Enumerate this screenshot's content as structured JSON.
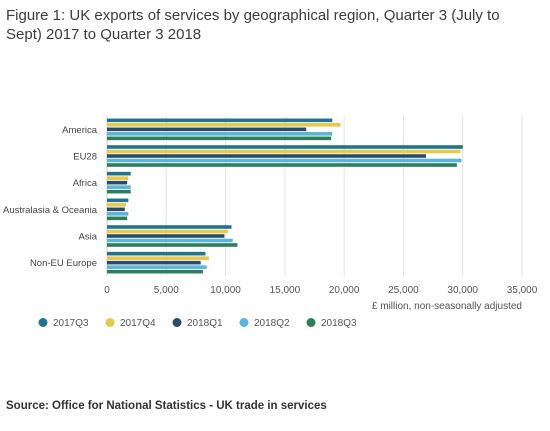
{
  "title": "Figure 1: UK exports of services by geographical region, Quarter 3 (July to Sept) 2017 to Quarter 3 2018",
  "source": "Source: Office for National Statistics - UK trade in services",
  "chart_data": {
    "type": "bar",
    "orientation": "horizontal",
    "categories": [
      "America",
      "EU28",
      "Africa",
      "Australasia & Oceania",
      "Asia",
      "Non-EU Europe"
    ],
    "series": [
      {
        "name": "2017Q3",
        "color": "#20748f",
        "values": [
          19000,
          30000,
          2000,
          1800,
          10500,
          8300
        ]
      },
      {
        "name": "2017Q4",
        "color": "#e8c84a",
        "values": [
          19700,
          29800,
          1800,
          1600,
          10200,
          8600
        ]
      },
      {
        "name": "2018Q1",
        "color": "#2c4a6b",
        "values": [
          16800,
          26900,
          1700,
          1500,
          9900,
          7900
        ]
      },
      {
        "name": "2018Q2",
        "color": "#5ab5d9",
        "values": [
          19000,
          29900,
          2000,
          1800,
          10600,
          8400
        ]
      },
      {
        "name": "2018Q3",
        "color": "#2e7d5b",
        "values": [
          18900,
          29500,
          2000,
          1700,
          11000,
          8100
        ]
      }
    ],
    "x_ticks": [
      "0",
      "5,000",
      "10,000",
      "15,000",
      "20,000",
      "25,000",
      "30,000",
      "35,000"
    ],
    "xlim": [
      0,
      35000
    ],
    "xlabel": "£ million, non-seasonally adjusted",
    "ylabel": "",
    "grid": true,
    "legend_position": "bottom"
  }
}
